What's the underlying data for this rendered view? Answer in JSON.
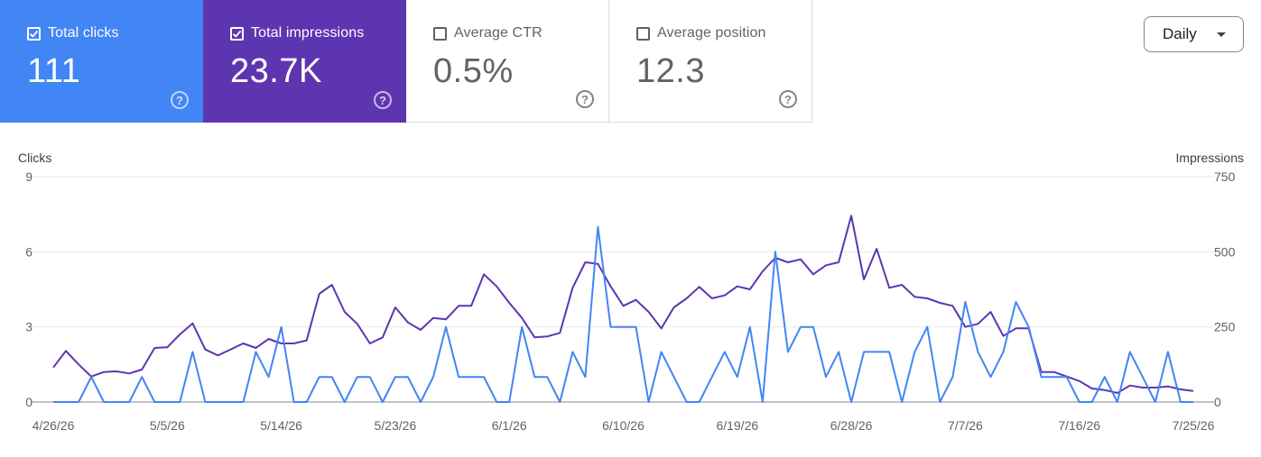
{
  "cards": [
    {
      "label": "Total clicks",
      "value": "111",
      "checked": true
    },
    {
      "label": "Total impressions",
      "value": "23.7K",
      "checked": true
    },
    {
      "label": "Average CTR",
      "value": "0.5%",
      "checked": false
    },
    {
      "label": "Average position",
      "value": "12.3",
      "checked": false
    }
  ],
  "help_glyph": "?",
  "period_dropdown": {
    "selected": "Daily"
  },
  "chart_data": {
    "type": "line",
    "left_axis": {
      "label": "Clicks",
      "ticks": [
        "0",
        "3",
        "6",
        "9"
      ],
      "ylim": [
        0,
        9
      ]
    },
    "right_axis": {
      "label": "Impressions",
      "ticks": [
        "0",
        "250",
        "500",
        "750"
      ],
      "ylim": [
        0,
        750
      ]
    },
    "x_tick_labels": [
      "4/26/26",
      "5/5/26",
      "5/14/26",
      "5/23/26",
      "6/1/26",
      "6/10/26",
      "6/19/26",
      "6/28/26",
      "7/7/26",
      "7/16/26",
      "7/25/26"
    ],
    "colors": {
      "clicks": "#4285f4",
      "impressions": "#5e35b1",
      "grid": "#e8eaed",
      "baseline": "#80868b"
    },
    "series": [
      {
        "axis": "left",
        "color": "#4285f4",
        "values": [
          0,
          0,
          0,
          1,
          0,
          0,
          0,
          1,
          0,
          0,
          0,
          2,
          0,
          0,
          0,
          0,
          2,
          1,
          3,
          0,
          0,
          1,
          1,
          0,
          1,
          1,
          0,
          1,
          1,
          0,
          1,
          3,
          1,
          1,
          1,
          0,
          0,
          3,
          1,
          1,
          0,
          2,
          1,
          7,
          3,
          3,
          3,
          0,
          2,
          1,
          0,
          0,
          1,
          2,
          1,
          3,
          0,
          6,
          2,
          3,
          3,
          1,
          2,
          0,
          2,
          2,
          2,
          0,
          2,
          3,
          0,
          1,
          4,
          2,
          1,
          2,
          4,
          3,
          1,
          1,
          1,
          0,
          0,
          1,
          0,
          2,
          1,
          0,
          2,
          0,
          0
        ]
      },
      {
        "axis": "right",
        "color": "#5e35b1",
        "values": [
          115,
          170,
          125,
          85,
          100,
          102,
          95,
          108,
          180,
          182,
          225,
          262,
          175,
          155,
          175,
          195,
          180,
          210,
          195,
          195,
          205,
          360,
          390,
          300,
          260,
          195,
          215,
          315,
          265,
          240,
          280,
          275,
          320,
          320,
          425,
          385,
          330,
          280,
          215,
          218,
          230,
          380,
          465,
          460,
          385,
          320,
          340,
          300,
          245,
          315,
          345,
          383,
          345,
          355,
          385,
          375,
          435,
          480,
          465,
          475,
          425,
          455,
          465,
          620,
          408,
          510,
          380,
          390,
          350,
          345,
          330,
          320,
          250,
          260,
          300,
          220,
          245,
          245,
          100,
          100,
          85,
          70,
          45,
          40,
          30,
          55,
          48,
          48,
          52,
          42,
          37
        ]
      }
    ]
  }
}
